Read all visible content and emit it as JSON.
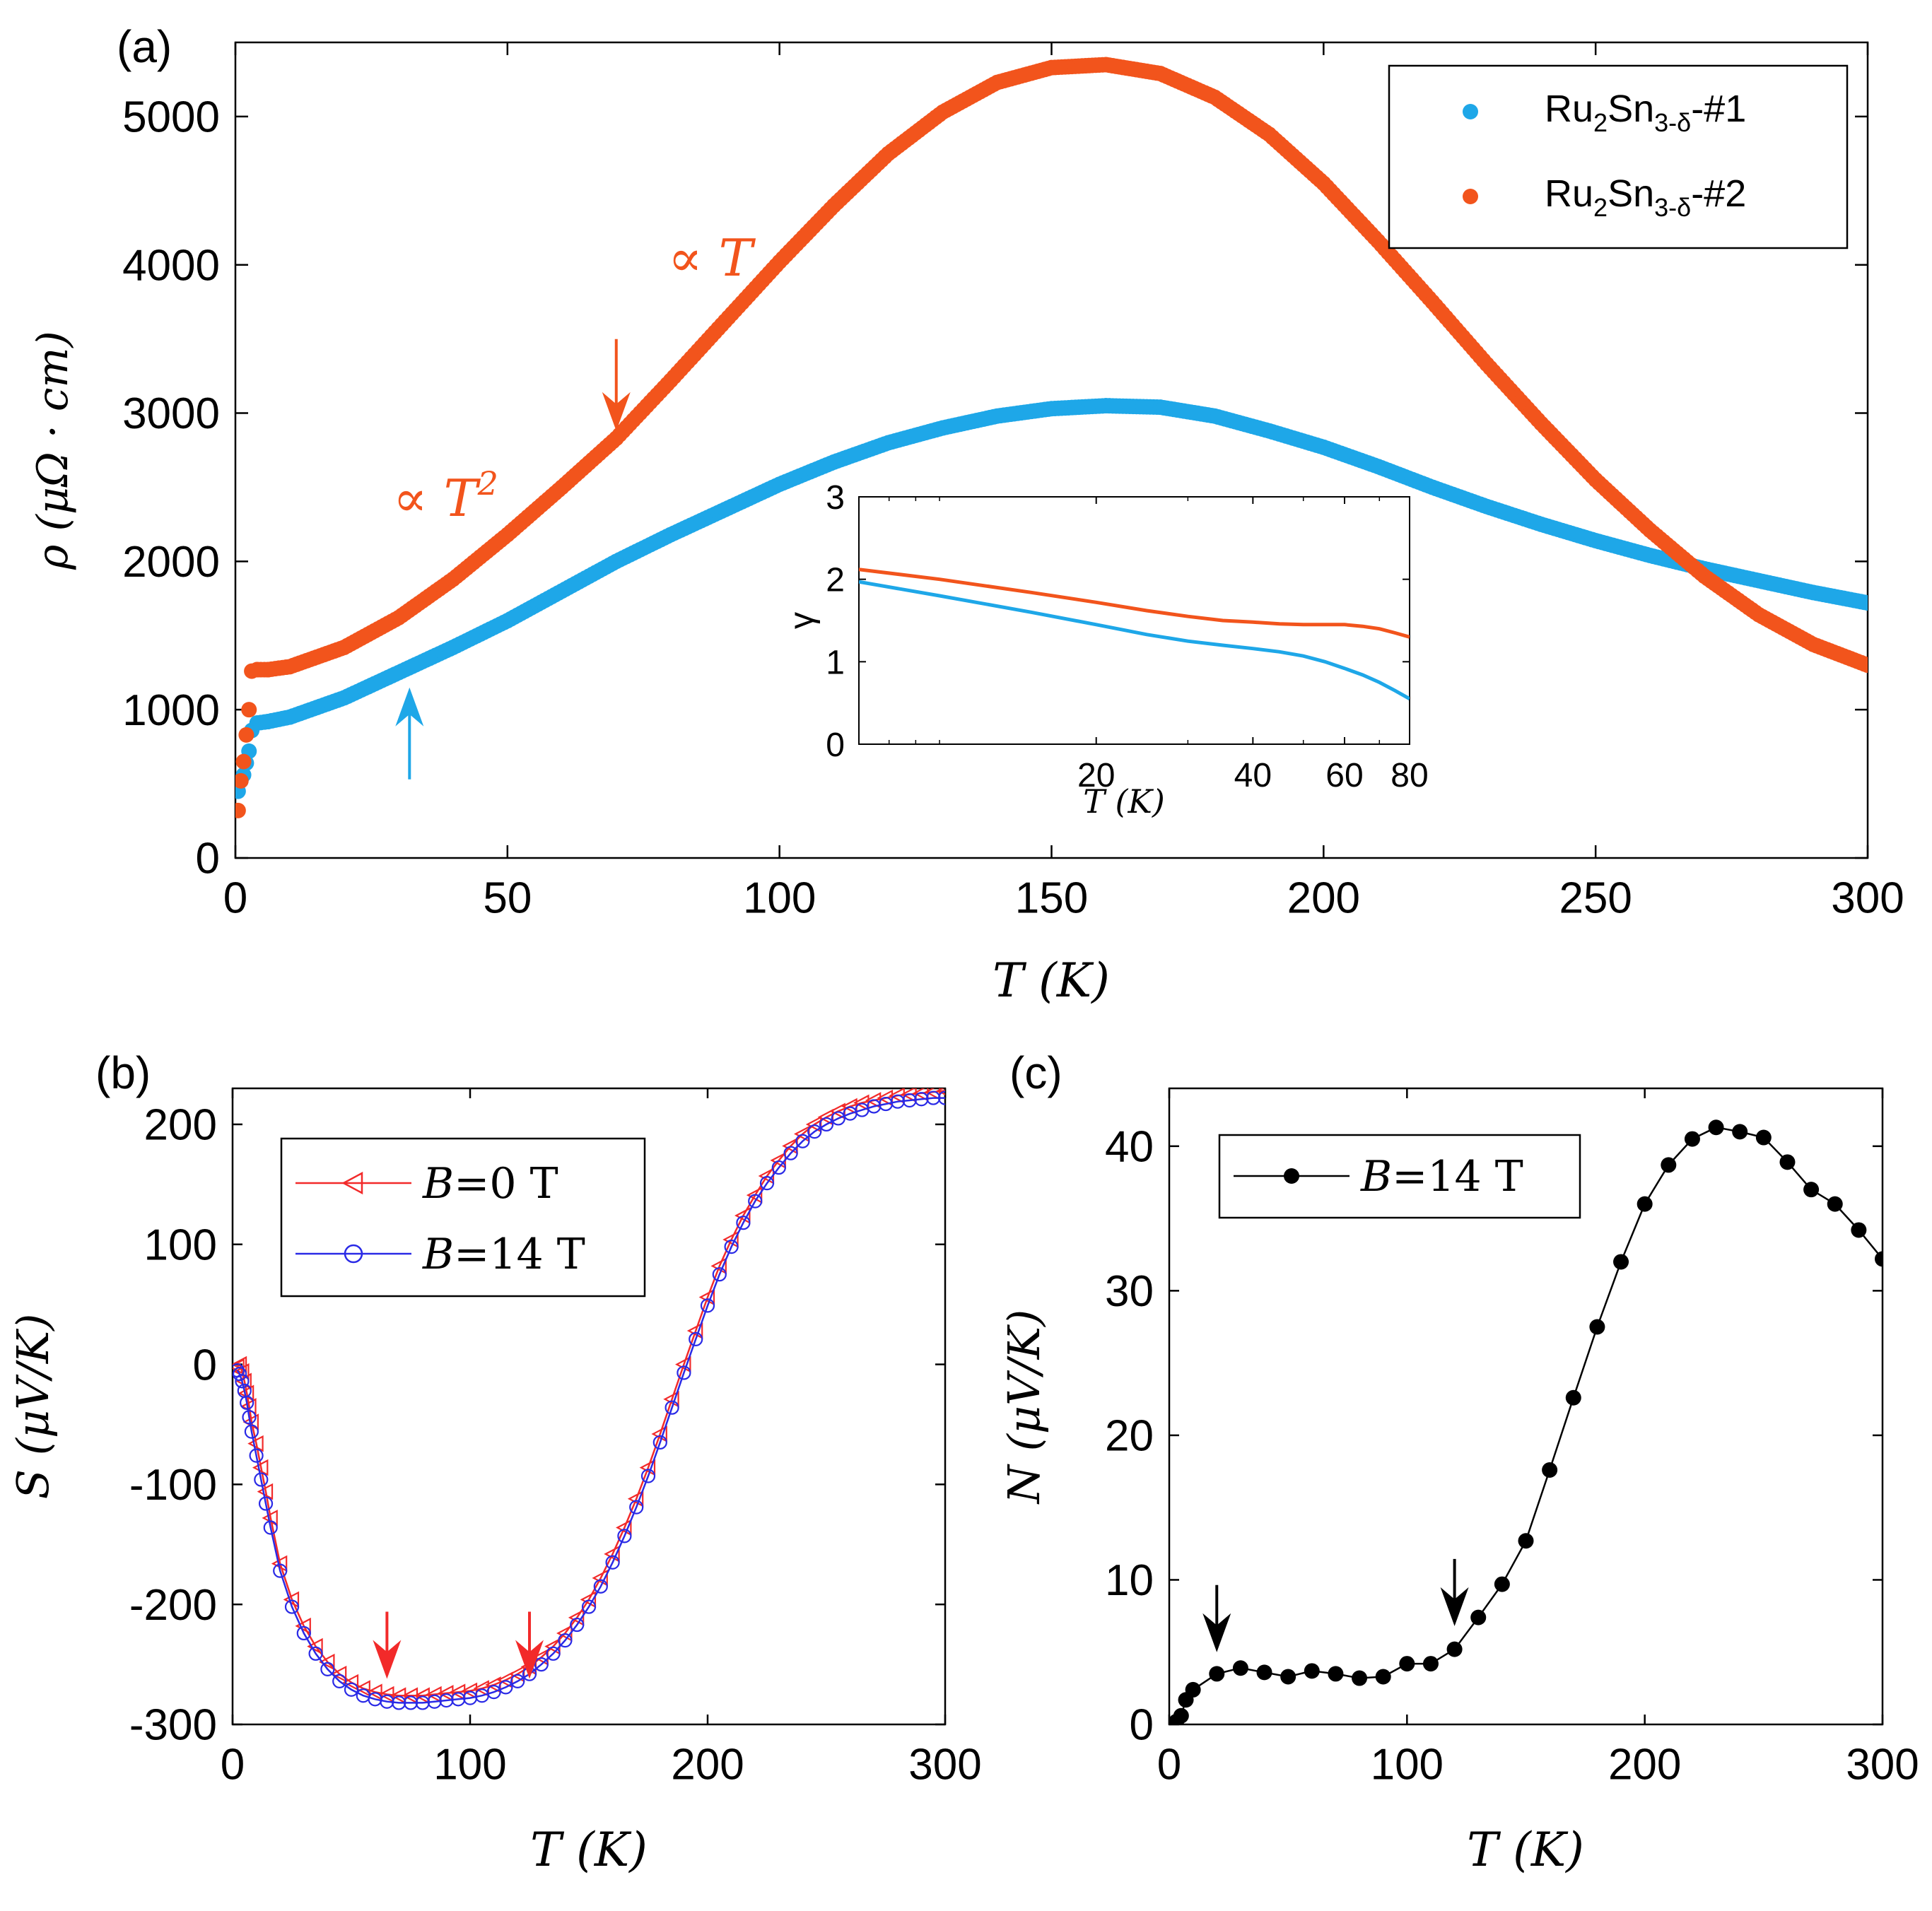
{
  "colors": {
    "blue": "#1ea7e8",
    "orange": "#f2541c",
    "red": "#f22a2a",
    "navy": "#2a2ae6",
    "black": "#000000"
  },
  "chart_data": [
    {
      "id": "a",
      "panel_label": "(a)",
      "type": "scatter",
      "xlabel": "T (K)",
      "ylabel": "ρ (μΩ · cm)",
      "xlim": [
        0,
        300
      ],
      "ylim": [
        0,
        5500
      ],
      "xticks": [
        0,
        50,
        100,
        150,
        200,
        250,
        300
      ],
      "yticks": [
        0,
        1000,
        2000,
        3000,
        4000,
        5000
      ],
      "legend_position": "top-right",
      "series": [
        {
          "name": "Ru2Sn3-δ-#1",
          "name_base": "Ru",
          "name_sub1": "2",
          "name_mid": "Sn",
          "name_sub2": "3-δ",
          "name_tail": "-#1",
          "color": "#1ea7e8",
          "x": [
            0.5,
            1,
            1.5,
            2,
            2.5,
            3,
            4,
            6,
            10,
            20,
            30,
            40,
            50,
            60,
            70,
            80,
            90,
            100,
            110,
            120,
            130,
            140,
            150,
            160,
            170,
            180,
            190,
            200,
            210,
            220,
            230,
            240,
            250,
            260,
            270,
            280,
            290,
            300
          ],
          "y": [
            450,
            520,
            560,
            640,
            720,
            860,
            910,
            920,
            950,
            1080,
            1250,
            1420,
            1600,
            1800,
            2000,
            2180,
            2350,
            2520,
            2670,
            2800,
            2900,
            2980,
            3030,
            3050,
            3040,
            2980,
            2880,
            2770,
            2640,
            2500,
            2370,
            2250,
            2140,
            2040,
            1950,
            1870,
            1790,
            1720
          ]
        },
        {
          "name": "Ru2Sn3-δ-#2",
          "name_base": "Ru",
          "name_sub1": "2",
          "name_mid": "Sn",
          "name_sub2": "3-δ",
          "name_tail": "-#2",
          "color": "#f2541c",
          "x": [
            0.5,
            1,
            1.5,
            2,
            2.5,
            3,
            4,
            6,
            10,
            20,
            30,
            40,
            50,
            60,
            70,
            80,
            90,
            100,
            110,
            120,
            130,
            140,
            150,
            160,
            170,
            180,
            190,
            200,
            210,
            220,
            230,
            240,
            250,
            260,
            270,
            280,
            290,
            300
          ],
          "y": [
            320,
            520,
            650,
            830,
            1000,
            1260,
            1270,
            1270,
            1290,
            1420,
            1620,
            1880,
            2180,
            2500,
            2830,
            3220,
            3620,
            4020,
            4400,
            4750,
            5030,
            5230,
            5330,
            5350,
            5290,
            5130,
            4880,
            4550,
            4160,
            3750,
            3330,
            2930,
            2550,
            2210,
            1900,
            1640,
            1440,
            1300
          ]
        }
      ],
      "annotations": {
        "t2_base": "∝ T",
        "t2_exp": "2",
        "t_linear": "∝ T"
      },
      "arrows": [
        {
          "x": 70,
          "y": 2880,
          "direction": "down",
          "color": "#f2541c"
        },
        {
          "x": 32,
          "y": 1150,
          "direction": "up",
          "color": "#1ea7e8"
        }
      ],
      "inset": {
        "type": "line",
        "xlabel": "T (K)",
        "ylabel": "γ",
        "xscale": "log",
        "xlim": [
          7,
          80
        ],
        "ylim": [
          0,
          3
        ],
        "xticks": [
          20,
          40,
          60,
          80
        ],
        "yticks": [
          0,
          1,
          2,
          3
        ],
        "series": [
          {
            "name": "Ru2Sn3-δ-#1",
            "color": "#1ea7e8",
            "x": [
              7,
              10,
              15,
              20,
              25,
              30,
              35,
              40,
              45,
              50,
              55,
              60,
              65,
              70,
              75,
              80
            ],
            "y": [
              1.97,
              1.8,
              1.6,
              1.45,
              1.33,
              1.25,
              1.2,
              1.16,
              1.12,
              1.07,
              1.0,
              0.92,
              0.84,
              0.75,
              0.65,
              0.55
            ]
          },
          {
            "name": "Ru2Sn3-δ-#2",
            "color": "#f2541c",
            "x": [
              7,
              10,
              15,
              20,
              25,
              30,
              35,
              40,
              45,
              50,
              55,
              60,
              65,
              70,
              75,
              80
            ],
            "y": [
              2.12,
              2.0,
              1.84,
              1.72,
              1.62,
              1.55,
              1.5,
              1.48,
              1.46,
              1.45,
              1.45,
              1.45,
              1.43,
              1.4,
              1.35,
              1.3
            ]
          }
        ]
      }
    },
    {
      "id": "b",
      "panel_label": "(b)",
      "type": "line",
      "xlabel": "T (K)",
      "ylabel": "S (μV/K)",
      "xlim": [
        0,
        300
      ],
      "ylim": [
        -300,
        230
      ],
      "xticks": [
        0,
        100,
        200,
        300
      ],
      "yticks": [
        -300,
        -200,
        -100,
        0,
        100,
        200
      ],
      "legend_position": "top-left",
      "series": [
        {
          "name": "B=0 T",
          "name_var": "B",
          "name_rest": "=0 T",
          "color": "#f22a2a",
          "marker": "triangle-left",
          "x": [
            2,
            3,
            4,
            5,
            6,
            7,
            8,
            10,
            12,
            14,
            16,
            20,
            25,
            30,
            35,
            40,
            45,
            50,
            55,
            60,
            65,
            70,
            75,
            80,
            85,
            90,
            95,
            100,
            105,
            110,
            115,
            120,
            125,
            130,
            135,
            140,
            145,
            150,
            155,
            160,
            165,
            170,
            175,
            180,
            185,
            190,
            195,
            200,
            205,
            210,
            215,
            220,
            225,
            230,
            235,
            240,
            245,
            250,
            255,
            260,
            265,
            270,
            275,
            280,
            285,
            290,
            295,
            300
          ],
          "y": [
            -2,
            0,
            -6,
            -14,
            -24,
            -35,
            -48,
            -66,
            -86,
            -106,
            -128,
            -166,
            -196,
            -218,
            -235,
            -248,
            -258,
            -265,
            -270,
            -273,
            -275,
            -276,
            -276,
            -276,
            -275,
            -274,
            -273,
            -272,
            -270,
            -267,
            -263,
            -258,
            -252,
            -244,
            -235,
            -224,
            -211,
            -196,
            -178,
            -158,
            -136,
            -112,
            -86,
            -58,
            -29,
            0,
            28,
            56,
            82,
            104,
            124,
            141,
            157,
            170,
            182,
            192,
            200,
            206,
            211,
            215,
            218,
            220,
            222,
            224,
            225,
            226,
            227,
            228
          ]
        },
        {
          "name": "B=14 T",
          "name_var": "B",
          "name_rest": "=14 T",
          "color": "#2a2ae6",
          "marker": "circle",
          "x": [
            2,
            3,
            4,
            5,
            6,
            7,
            8,
            10,
            12,
            14,
            16,
            20,
            25,
            30,
            35,
            40,
            45,
            50,
            55,
            60,
            65,
            70,
            75,
            80,
            85,
            90,
            95,
            100,
            105,
            110,
            115,
            120,
            125,
            130,
            135,
            140,
            145,
            150,
            155,
            160,
            165,
            170,
            175,
            180,
            185,
            190,
            195,
            200,
            205,
            210,
            215,
            220,
            225,
            230,
            235,
            240,
            245,
            250,
            255,
            260,
            265,
            270,
            275,
            280,
            285,
            290,
            295,
            300
          ],
          "y": [
            -5,
            -8,
            -14,
            -22,
            -32,
            -44,
            -56,
            -76,
            -96,
            -116,
            -136,
            -172,
            -202,
            -224,
            -241,
            -254,
            -264,
            -271,
            -276,
            -279,
            -281,
            -282,
            -282,
            -282,
            -281,
            -280,
            -279,
            -278,
            -276,
            -273,
            -269,
            -264,
            -258,
            -250,
            -241,
            -230,
            -217,
            -202,
            -185,
            -165,
            -143,
            -119,
            -93,
            -65,
            -36,
            -7,
            21,
            49,
            75,
            98,
            118,
            136,
            151,
            164,
            176,
            186,
            194,
            200,
            205,
            209,
            212,
            215,
            217,
            219,
            220,
            221,
            222,
            222
          ]
        }
      ],
      "arrows": [
        {
          "x": 65,
          "y": -262,
          "direction": "down",
          "color": "#f22a2a"
        },
        {
          "x": 125,
          "y": -262,
          "direction": "down",
          "color": "#f22a2a"
        }
      ]
    },
    {
      "id": "c",
      "panel_label": "(c)",
      "type": "line",
      "xlabel": "T (K)",
      "ylabel": "N (μV/K)",
      "xlim": [
        0,
        300
      ],
      "ylim": [
        0,
        44
      ],
      "xticks": [
        0,
        100,
        200,
        300
      ],
      "yticks": [
        0,
        10,
        20,
        30,
        40
      ],
      "legend_position": "top-left",
      "series": [
        {
          "name": "B=14 T",
          "name_var": "B",
          "name_rest": "=14 T",
          "color": "#000000",
          "marker": "filled-circle",
          "x": [
            3,
            5,
            7,
            10,
            20,
            30,
            40,
            50,
            60,
            70,
            80,
            90,
            100,
            110,
            120,
            130,
            140,
            150,
            160,
            170,
            180,
            190,
            200,
            210,
            220,
            230,
            240,
            250,
            260,
            270,
            280,
            290,
            300
          ],
          "y": [
            0.2,
            0.6,
            1.7,
            2.4,
            3.5,
            3.9,
            3.6,
            3.3,
            3.7,
            3.5,
            3.2,
            3.3,
            4.2,
            4.2,
            5.2,
            7.4,
            9.7,
            12.7,
            17.6,
            22.6,
            27.5,
            32.0,
            36.0,
            38.7,
            40.5,
            41.3,
            41.0,
            40.6,
            38.9,
            37.0,
            36.0,
            34.2,
            32.2
          ]
        }
      ],
      "arrows": [
        {
          "x": 20,
          "y": 5.0,
          "direction": "down",
          "color": "#000000"
        },
        {
          "x": 120,
          "y": 6.8,
          "direction": "down",
          "color": "#000000"
        }
      ]
    }
  ]
}
